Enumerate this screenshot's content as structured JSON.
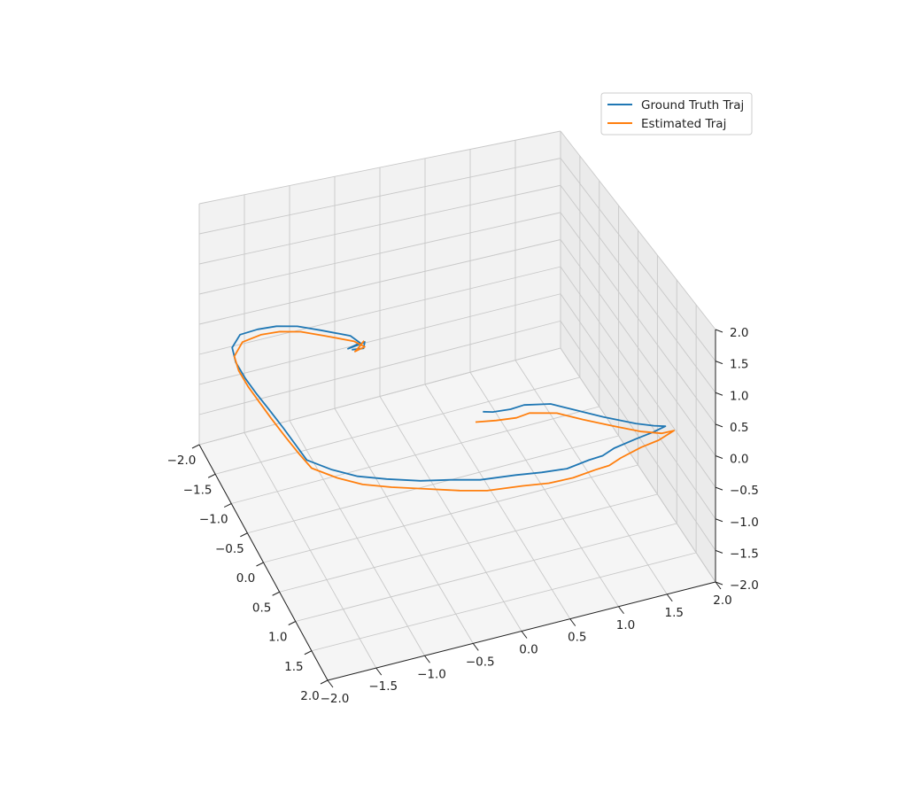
{
  "chart_data": {
    "type": "line",
    "projection": "3d",
    "grid": true,
    "legend_position": "top-right",
    "xlim": [
      -2.0,
      2.0
    ],
    "ylim": [
      -2.0,
      2.0
    ],
    "zlim": [
      -2.0,
      2.0
    ],
    "x_ticks": [
      "−2.0",
      "−1.5",
      "−1.0",
      "−0.5",
      "0.0",
      "0.5",
      "1.0",
      "1.5",
      "2.0"
    ],
    "y_ticks": [
      "−2.0",
      "−1.5",
      "−1.0",
      "−0.5",
      "0.0",
      "0.5",
      "1.0",
      "1.5",
      "2.0"
    ],
    "z_ticks": [
      "−2.0",
      "−1.5",
      "−1.0",
      "−0.5",
      "0.0",
      "0.5",
      "1.0",
      "1.5",
      "2.0"
    ],
    "series": [
      {
        "name": "Ground Truth Traj",
        "color": "#1f77b4",
        "points": [
          [
            0.56,
            0.13,
            0.1
          ],
          [
            0.6,
            0.22,
            0.1
          ],
          [
            0.62,
            0.4,
            0.1
          ],
          [
            0.6,
            0.55,
            0.1
          ],
          [
            0.68,
            0.8,
            0.1
          ],
          [
            0.88,
            1.0,
            0.1
          ],
          [
            1.08,
            1.2,
            0.1
          ],
          [
            1.3,
            1.45,
            0.1
          ],
          [
            1.4,
            1.6,
            0.1
          ],
          [
            1.45,
            1.7,
            0.1
          ],
          [
            1.5,
            1.55,
            0.1
          ],
          [
            1.55,
            1.35,
            0.1
          ],
          [
            1.62,
            1.1,
            0.1
          ],
          [
            1.7,
            0.95,
            0.1
          ],
          [
            1.72,
            0.8,
            0.1
          ],
          [
            1.78,
            0.55,
            0.1
          ],
          [
            1.75,
            0.3,
            0.1
          ],
          [
            1.7,
            0.05,
            0.1
          ],
          [
            1.65,
            -0.3,
            0.1
          ],
          [
            1.55,
            -0.55,
            0.1
          ],
          [
            1.45,
            -0.85,
            0.1
          ],
          [
            1.3,
            -1.15,
            0.1
          ],
          [
            1.15,
            -1.4,
            0.1
          ],
          [
            0.95,
            -1.6,
            0.1
          ],
          [
            0.7,
            -1.78,
            0.1
          ],
          [
            0.4,
            -1.8,
            0.1
          ],
          [
            0.1,
            -1.82,
            0.1
          ],
          [
            -0.25,
            -1.85,
            0.1
          ],
          [
            -0.55,
            -1.88,
            0.1
          ],
          [
            -0.85,
            -1.9,
            0.1
          ],
          [
            -1.15,
            -1.9,
            0.1
          ],
          [
            -1.4,
            -1.85,
            0.1
          ],
          [
            -1.58,
            -1.7,
            0.1
          ],
          [
            -1.6,
            -1.5,
            0.1
          ],
          [
            -1.58,
            -1.3,
            0.1
          ],
          [
            -1.5,
            -1.1,
            0.1
          ],
          [
            -1.35,
            -0.9,
            0.1
          ],
          [
            -1.15,
            -0.65,
            0.1
          ],
          [
            -1.0,
            -0.6,
            0.1
          ],
          [
            -0.95,
            -0.75,
            0.1
          ],
          [
            -0.98,
            -0.6,
            0.1
          ],
          [
            -1.0,
            -0.55,
            0.1
          ],
          [
            -0.9,
            -0.6,
            0.1
          ],
          [
            -0.92,
            -0.72,
            0.1
          ]
        ]
      },
      {
        "name": "Estimated Traj",
        "color": "#ff7f0e",
        "points": [
          [
            0.7,
            0.0,
            0.1
          ],
          [
            0.75,
            0.2,
            0.1
          ],
          [
            0.78,
            0.4,
            0.1
          ],
          [
            0.75,
            0.55,
            0.1
          ],
          [
            0.85,
            0.8,
            0.1
          ],
          [
            1.05,
            1.0,
            0.1
          ],
          [
            1.25,
            1.22,
            0.1
          ],
          [
            1.45,
            1.45,
            0.1
          ],
          [
            1.55,
            1.62,
            0.1
          ],
          [
            1.55,
            1.75,
            0.1
          ],
          [
            1.65,
            1.55,
            0.1
          ],
          [
            1.7,
            1.35,
            0.1
          ],
          [
            1.8,
            1.1,
            0.1
          ],
          [
            1.88,
            0.95,
            0.1
          ],
          [
            1.9,
            0.8,
            0.1
          ],
          [
            1.95,
            0.55,
            0.1
          ],
          [
            1.95,
            0.3,
            0.1
          ],
          [
            1.9,
            0.05,
            0.1
          ],
          [
            1.85,
            -0.3,
            0.1
          ],
          [
            1.75,
            -0.55,
            0.1
          ],
          [
            1.6,
            -0.85,
            0.1
          ],
          [
            1.45,
            -1.15,
            0.1
          ],
          [
            1.3,
            -1.4,
            0.1
          ],
          [
            1.1,
            -1.6,
            0.1
          ],
          [
            0.85,
            -1.78,
            0.1
          ],
          [
            0.55,
            -1.82,
            0.1
          ],
          [
            0.25,
            -1.85,
            0.1
          ],
          [
            -0.1,
            -1.88,
            0.1
          ],
          [
            -0.4,
            -1.9,
            0.1
          ],
          [
            -0.7,
            -1.92,
            0.1
          ],
          [
            -1.0,
            -1.92,
            0.1
          ],
          [
            -1.25,
            -1.88,
            0.1
          ],
          [
            -1.45,
            -1.72,
            0.1
          ],
          [
            -1.5,
            -1.5,
            0.1
          ],
          [
            -1.48,
            -1.3,
            0.1
          ],
          [
            -1.4,
            -1.1,
            0.1
          ],
          [
            -1.25,
            -0.9,
            0.1
          ],
          [
            -1.05,
            -0.65,
            0.1
          ],
          [
            -0.92,
            -0.58,
            0.1
          ],
          [
            -0.88,
            -0.7,
            0.1
          ],
          [
            -0.95,
            -0.62,
            0.1
          ],
          [
            -1.02,
            -0.55,
            0.1
          ]
        ]
      }
    ]
  }
}
